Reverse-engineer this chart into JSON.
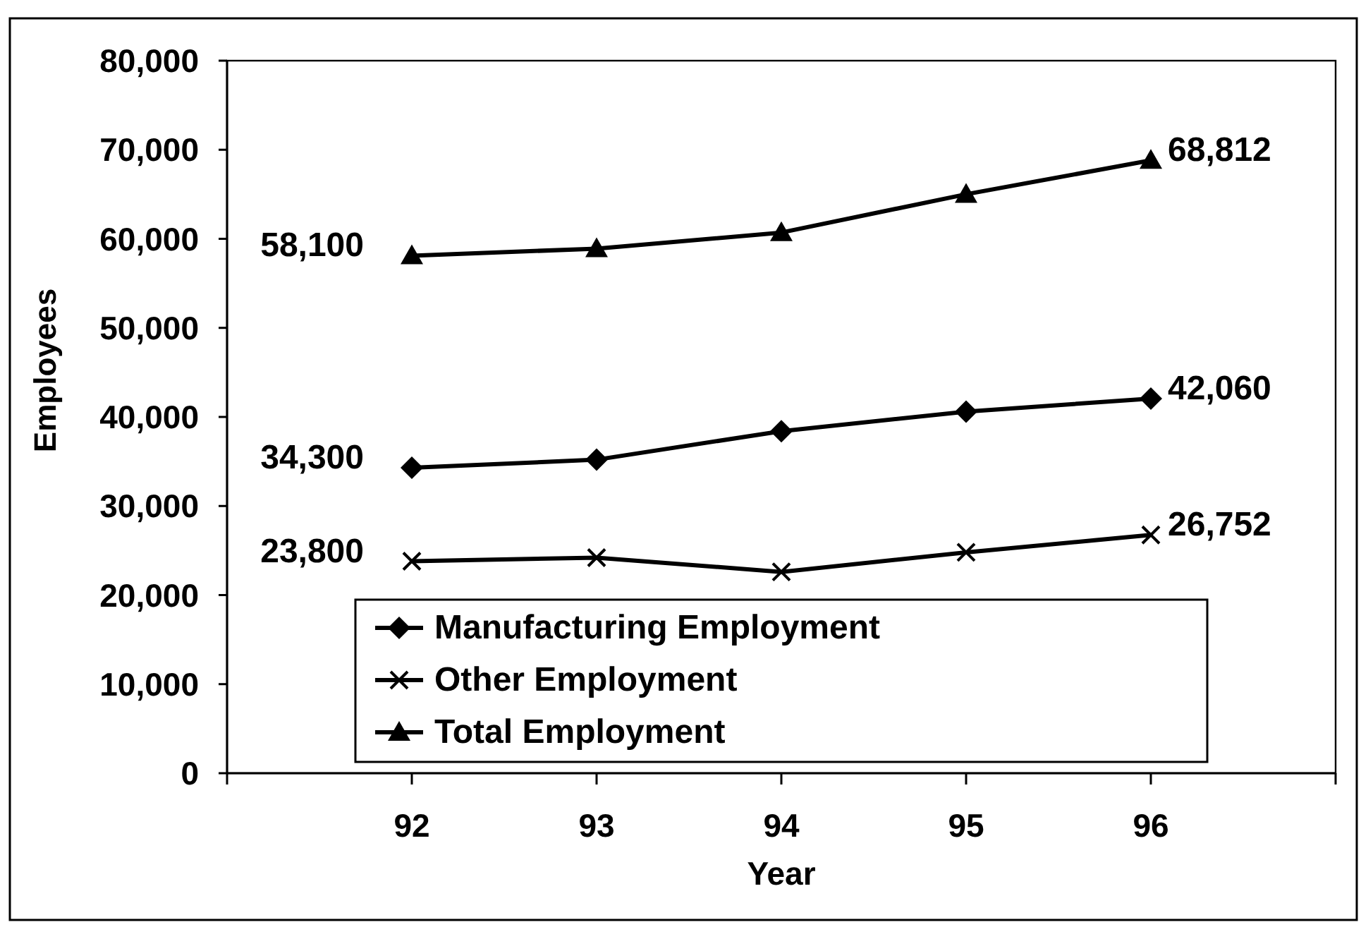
{
  "chart_data": {
    "type": "line",
    "xlabel": "Year",
    "ylabel": "Employees",
    "x": [
      92,
      93,
      94,
      95,
      96
    ],
    "xlim": [
      91,
      97
    ],
    "xticks": [
      {
        "value": 91,
        "label": null
      },
      92,
      93,
      94,
      95,
      96,
      {
        "value": 97,
        "label": null
      }
    ],
    "ylim": [
      0,
      80000
    ],
    "yticks": [
      0,
      {
        "value": 10000,
        "label": "10,000"
      },
      {
        "value": 20000,
        "label": "20,000"
      },
      {
        "value": 30000,
        "label": "30,000"
      },
      {
        "value": 40000,
        "label": "40,000"
      },
      {
        "value": 50000,
        "label": "50,000"
      },
      {
        "value": 60000,
        "label": "60,000"
      },
      {
        "value": 70000,
        "label": "70,000"
      },
      {
        "value": 80000,
        "label": "80,000"
      }
    ],
    "legend": "bottom",
    "line_style": "solid",
    "series": [
      {
        "name": "Manufacturing Employment",
        "color": "#000000",
        "marker": "diamond",
        "values": [
          34300,
          35200,
          38400,
          40600,
          42060
        ],
        "value_labels": [
          "34,300",
          null,
          null,
          null,
          "42,060"
        ]
      },
      {
        "name": "Other Employment",
        "color": "#000000",
        "marker": "cross",
        "values": [
          23800,
          24200,
          22600,
          24800,
          26752
        ],
        "value_labels": [
          "23,800",
          null,
          null,
          null,
          "26,752"
        ]
      },
      {
        "name": "Total Employment",
        "color": "#000000",
        "marker": "triangle",
        "values": [
          58100,
          58900,
          60700,
          65000,
          68812
        ],
        "value_labels": [
          "58,100",
          null,
          null,
          null,
          "68,812"
        ]
      }
    ]
  }
}
